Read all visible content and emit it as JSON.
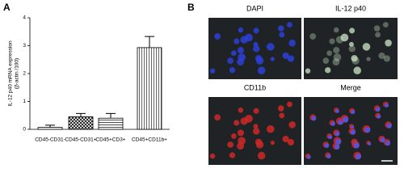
{
  "panels": {
    "a": "A",
    "b": "B"
  },
  "chart_data": {
    "type": "bar",
    "ylabel": [
      "IL-12 p40 mRNA expression",
      "(β-actin /100)"
    ],
    "categories": [
      "CD45-CD31-",
      "CD45-CD31+",
      "CD45+CD3+",
      "CD45+CD11b+"
    ],
    "values": [
      0.07,
      0.45,
      0.4,
      2.93
    ],
    "errors": [
      0.08,
      0.12,
      0.17,
      0.4
    ],
    "patterns": [
      "dots",
      "crosshatch",
      "hlines",
      "vlines"
    ],
    "color": "#000000",
    "ylim": [
      0,
      4
    ],
    "yticks": [
      0,
      1,
      2,
      3,
      4
    ]
  },
  "images": [
    {
      "label": "DAPI",
      "stain": "blue"
    },
    {
      "label": "IL-12 p40",
      "stain": "green"
    },
    {
      "label": "CD11b",
      "stain": "red"
    },
    {
      "label": "Merge",
      "stain": "merge"
    }
  ]
}
